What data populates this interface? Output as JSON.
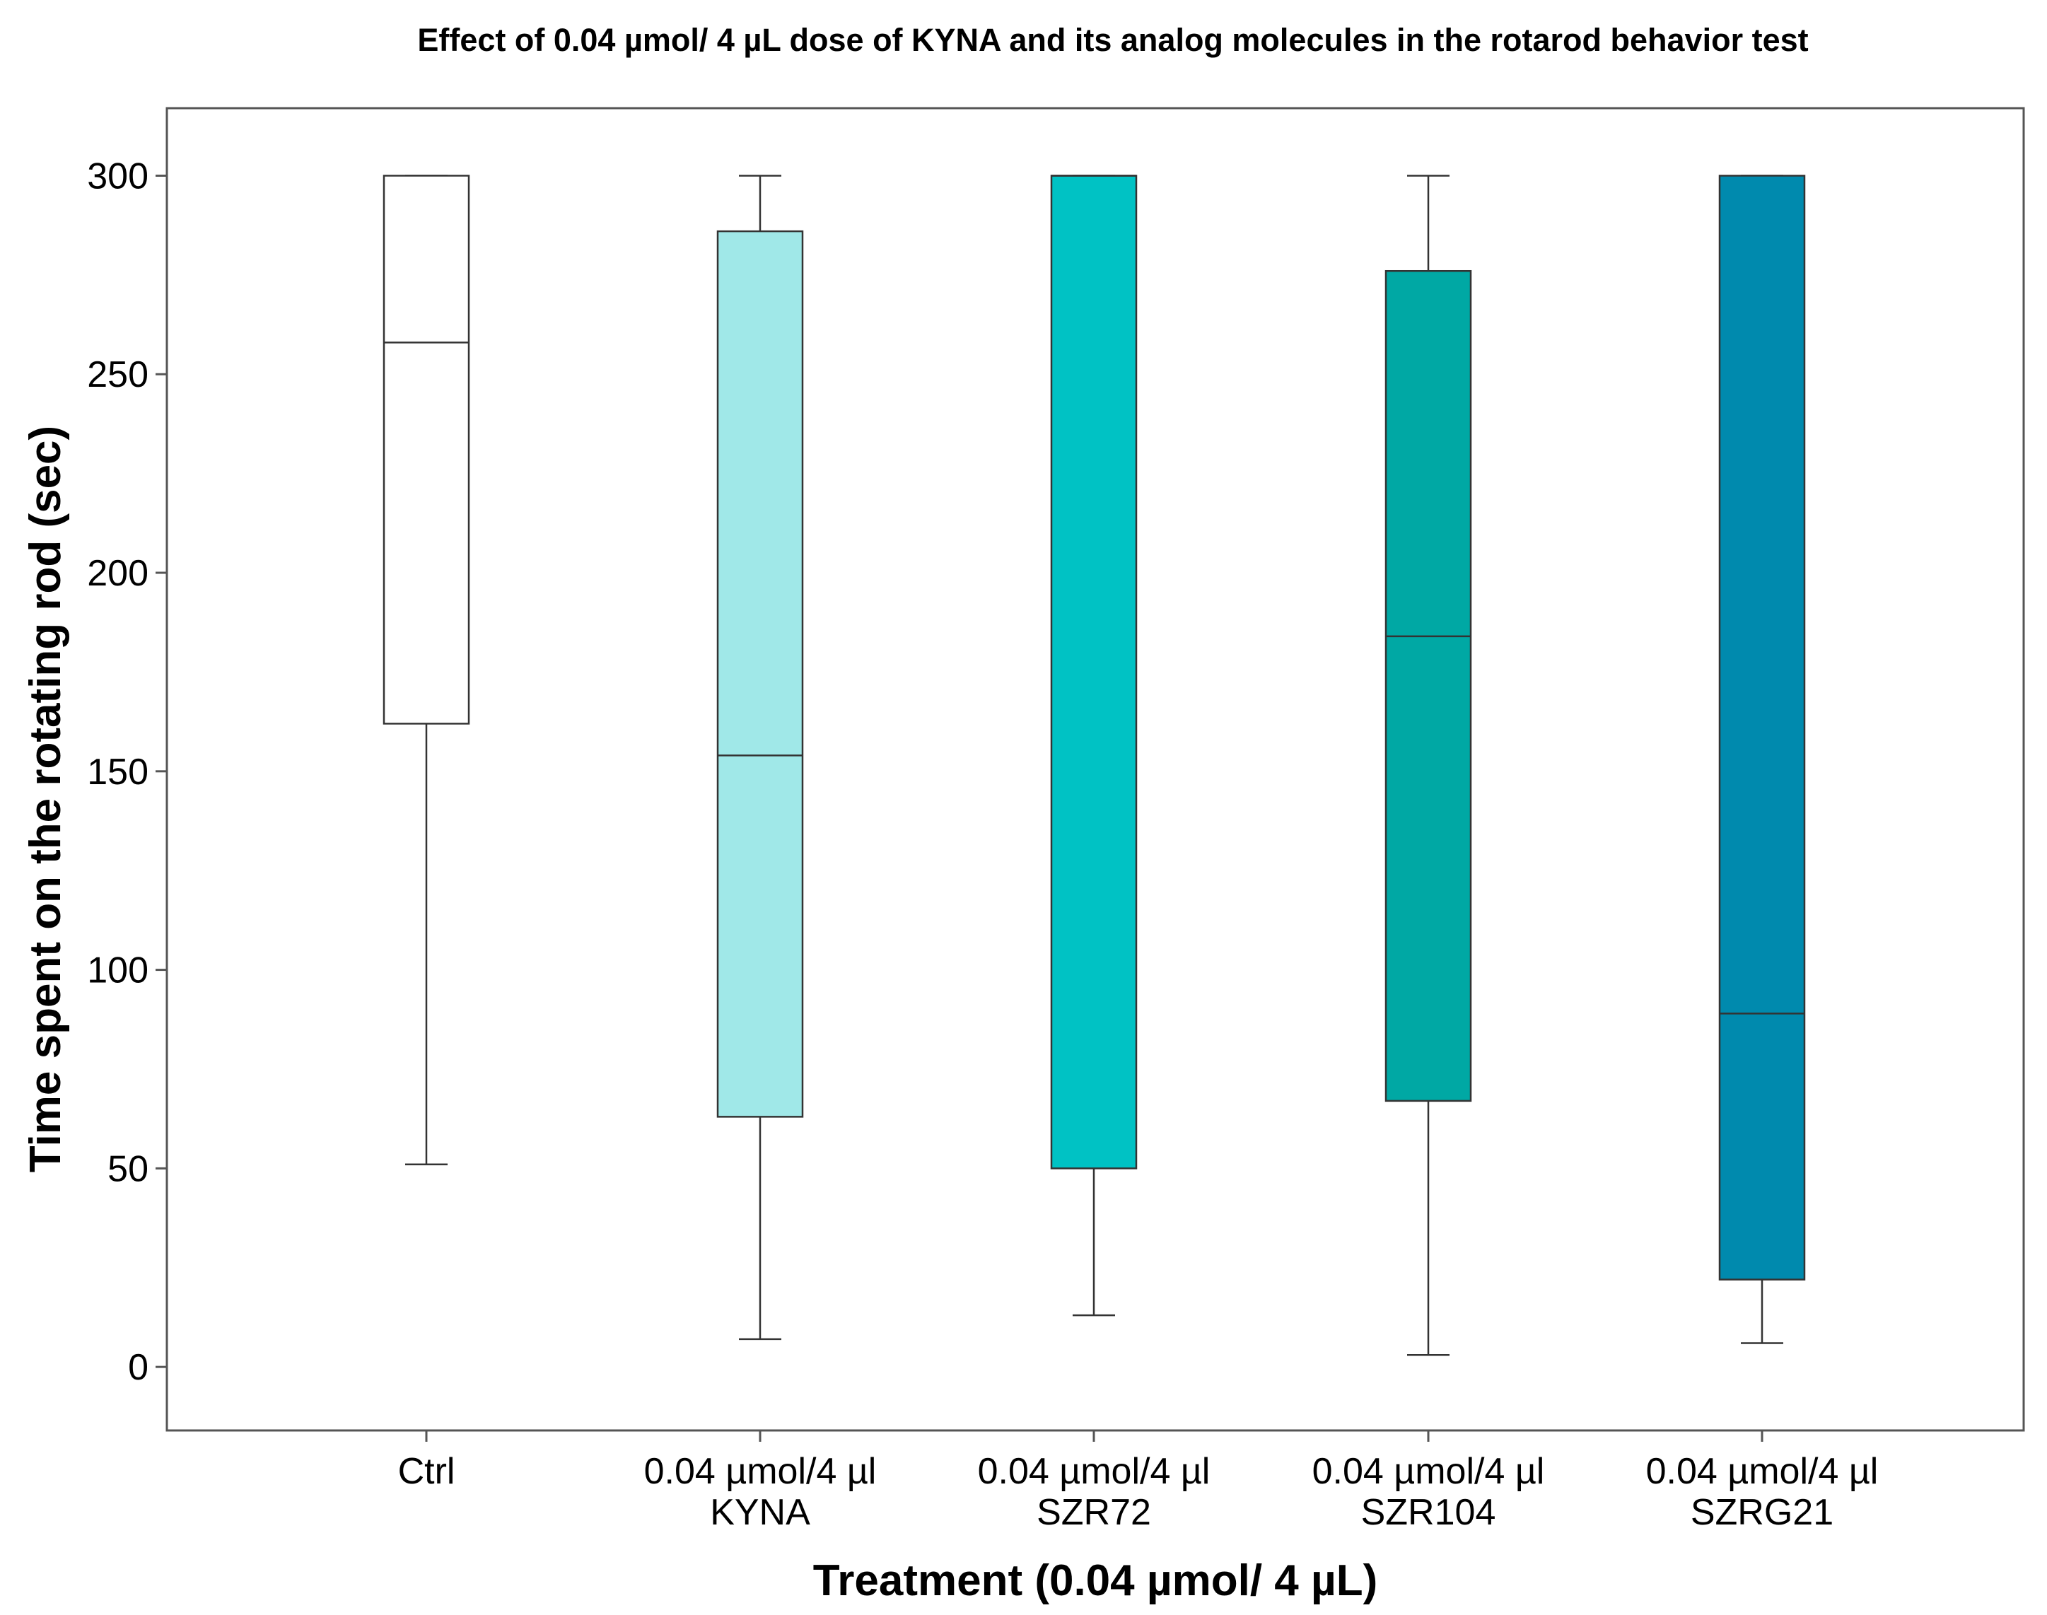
{
  "chart_data": {
    "type": "boxplot",
    "title": "Effect of 0.04 µmol/ 4 µL dose of KYNA and its analog molecules in the rotarod behavior test",
    "xlabel": "Treatment (0.04 µmol/ 4 µL)",
    "ylabel": "Time spent on the rotating rod (sec)",
    "ylim": [
      -16,
      317
    ],
    "yticks": [
      0,
      50,
      100,
      150,
      200,
      250,
      300
    ],
    "grid": false,
    "categories": [
      [
        "Ctrl"
      ],
      [
        "0.04 µmol/4 µl",
        "KYNA"
      ],
      [
        "0.04 µmol/4 µl",
        "SZR72"
      ],
      [
        "0.04 µmol/4 µl",
        "SZR104"
      ],
      [
        "0.04 µmol/4 µl",
        "SZRG21"
      ]
    ],
    "boxes": [
      {
        "name": "Ctrl",
        "min": 51,
        "q1": 162,
        "median": 258,
        "q3": 300,
        "max": 300,
        "color": "#ffffff"
      },
      {
        "name": "KYNA",
        "min": 7,
        "q1": 63,
        "median": 154,
        "q3": 286,
        "max": 300,
        "color": "#a0e8e8"
      },
      {
        "name": "SZR72",
        "min": 13,
        "q1": 50,
        "median": 300,
        "q3": 300,
        "max": 300,
        "color": "#00c2c4"
      },
      {
        "name": "SZR104",
        "min": 3,
        "q1": 67,
        "median": 184,
        "q3": 276,
        "max": 300,
        "color": "#00a8a4"
      },
      {
        "name": "SZRG21",
        "min": 6,
        "q1": 22,
        "median": 89,
        "q3": 300,
        "max": 300,
        "color": "#008aae"
      }
    ]
  }
}
